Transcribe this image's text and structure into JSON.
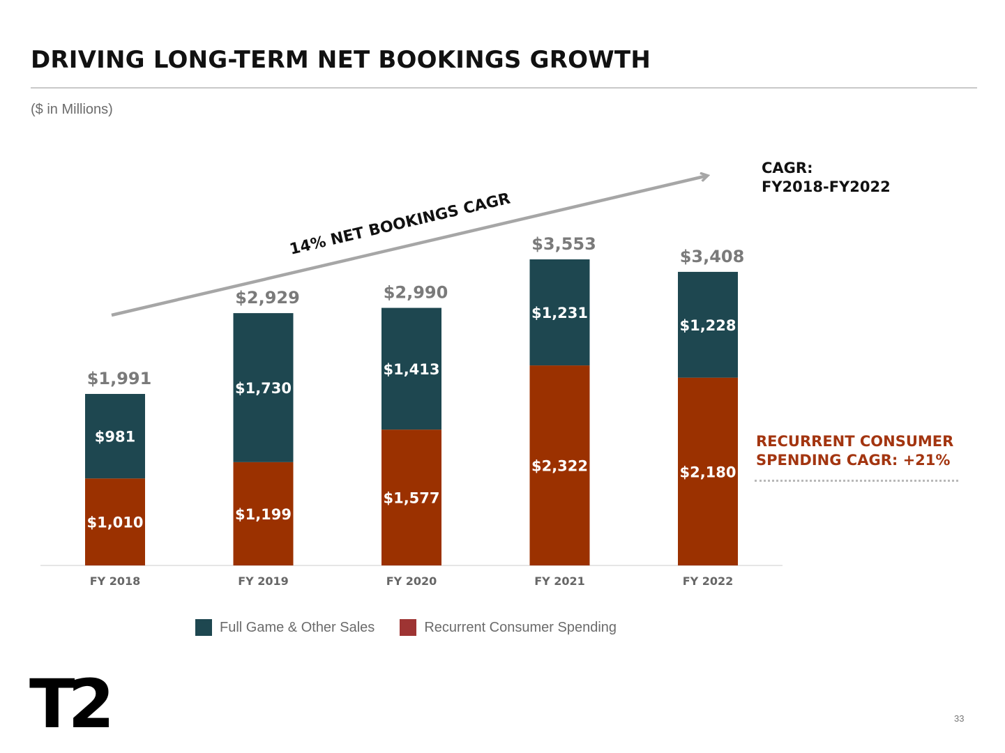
{
  "slide": {
    "title": "DRIVING LONG-TERM NET BOOKINGS GROWTH",
    "subtitle": "($ in Millions)",
    "cagr_heading_line1": "CAGR:",
    "cagr_heading_line2": "FY2018-FY2022",
    "arrow_label": "14% NET BOOKINGS CAGR",
    "rcs_note_line1": "RECURRENT CONSUMER",
    "rcs_note_line2": "SPENDING CAGR: +21%",
    "logo_text": "T2",
    "page_number": "33"
  },
  "colors": {
    "full_game": "#1e4750",
    "recurrent": "#9b3100",
    "total_label": "#7a7a7a",
    "arrow": "#a6a6a6",
    "accent_text": "#a33510"
  },
  "chart_data": {
    "type": "bar",
    "stacked": true,
    "categories": [
      "FY 2018",
      "FY 2019",
      "FY 2020",
      "FY 2021",
      "FY 2022"
    ],
    "series": [
      {
        "name": "Recurrent Consumer Spending",
        "values": [
          1010,
          1199,
          1577,
          2322,
          2180
        ],
        "labels": [
          "$1,010",
          "$1,199",
          "$1,577",
          "$2,322",
          "$2,180"
        ]
      },
      {
        "name": "Full Game & Other Sales",
        "values": [
          981,
          1730,
          1413,
          1231,
          1228
        ],
        "labels": [
          "$981",
          "$1,730",
          "$1,413",
          "$1,231",
          "$1,228"
        ]
      }
    ],
    "totals": [
      1991,
      2929,
      2990,
      3553,
      3408
    ],
    "total_labels": [
      "$1,991",
      "$2,929",
      "$2,990",
      "$3,553",
      "$3,408"
    ],
    "ylim": [
      0,
      3553
    ],
    "grid": false,
    "legend_position": "bottom",
    "legend": [
      "Full Game & Other Sales",
      "Recurrent Consumer Spending"
    ]
  }
}
